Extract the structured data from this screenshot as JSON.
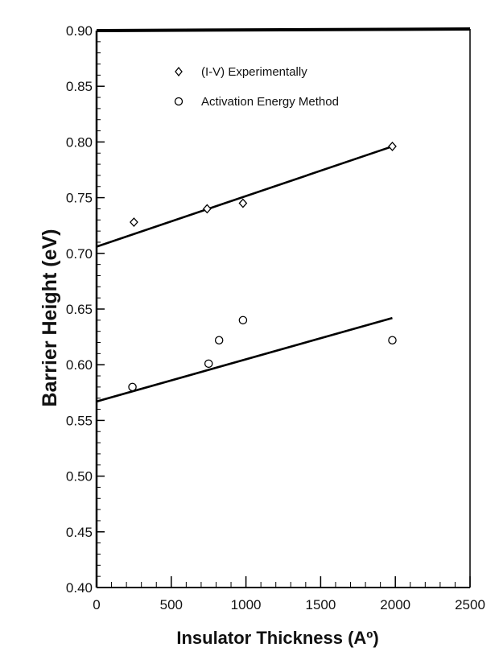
{
  "chart_data": {
    "type": "scatter",
    "xlabel": "Insulator Thickness (Aº)",
    "ylabel": "Barrier Height (eV)",
    "xlim": [
      0,
      2500
    ],
    "ylim": [
      0.4,
      0.9
    ],
    "x_ticks": [
      "0",
      "500",
      "1000",
      "1500",
      "2000",
      "2500"
    ],
    "y_ticks": [
      "0.40",
      "0.45",
      "0.50",
      "0.55",
      "0.60",
      "0.65",
      "0.70",
      "0.75",
      "0.80",
      "0.85",
      "0.90"
    ],
    "grid": false,
    "legend_position": "top",
    "series": [
      {
        "name": "(I-V) Experimentally",
        "marker": "diamond",
        "points": [
          {
            "x": 250,
            "y": 0.728
          },
          {
            "x": 740,
            "y": 0.74
          },
          {
            "x": 980,
            "y": 0.745
          },
          {
            "x": 1980,
            "y": 0.796
          }
        ],
        "fit_line": {
          "x": [
            0,
            1980
          ],
          "y": [
            0.706,
            0.796
          ]
        }
      },
      {
        "name": "Activation Energy Method",
        "marker": "circle",
        "points": [
          {
            "x": 240,
            "y": 0.58
          },
          {
            "x": 750,
            "y": 0.601
          },
          {
            "x": 820,
            "y": 0.622
          },
          {
            "x": 980,
            "y": 0.64
          },
          {
            "x": 1980,
            "y": 0.622
          }
        ],
        "fit_line": {
          "x": [
            0,
            1980
          ],
          "y": [
            0.567,
            0.642
          ]
        }
      }
    ]
  }
}
